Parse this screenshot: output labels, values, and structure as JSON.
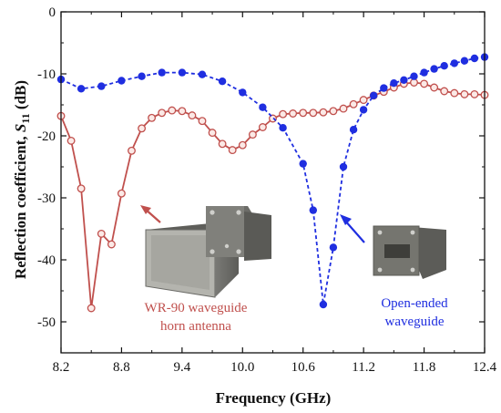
{
  "chart_data": {
    "type": "line",
    "xlabel": "Frequency (GHz)",
    "ylabel_main": "Reflection coefficient, ",
    "ylabel_sym": "S",
    "ylabel_sub": "11",
    "ylabel_unit": " (dB)",
    "xlim": [
      8.2,
      12.4
    ],
    "ylim": [
      -55,
      0
    ],
    "x_ticks": [
      "8.2",
      "8.8",
      "9.4",
      "10.0",
      "10.6",
      "11.2",
      "11.8",
      "12.4"
    ],
    "y_ticks": [
      "0",
      "-10",
      "-20",
      "-30",
      "-40",
      "-50"
    ],
    "grid": false,
    "series": [
      {
        "color": "#c0504d",
        "marker": "open-circle",
        "line": "solid",
        "label": [
          "WR-90 waveguide",
          "horn antenna"
        ],
        "x": [
          8.2,
          8.3,
          8.4,
          8.5,
          8.6,
          8.7,
          8.8,
          8.9,
          9.0,
          9.1,
          9.2,
          9.3,
          9.4,
          9.5,
          9.6,
          9.7,
          9.8,
          9.9,
          10.0,
          10.1,
          10.2,
          10.3,
          10.4,
          10.5,
          10.6,
          10.7,
          10.8,
          10.9,
          11.0,
          11.1,
          11.2,
          11.3,
          11.4,
          11.5,
          11.6,
          11.7,
          11.8,
          11.9,
          12.0,
          12.1,
          12.2,
          12.3,
          12.4
        ],
        "y": [
          -16.8,
          -20.8,
          -28.5,
          -47.8,
          -35.8,
          -37.5,
          -29.3,
          -22.4,
          -18.8,
          -17.1,
          -16.3,
          -15.9,
          -16.0,
          -16.7,
          -17.6,
          -19.5,
          -21.3,
          -22.3,
          -21.5,
          -19.8,
          -18.6,
          -17.2,
          -16.5,
          -16.4,
          -16.3,
          -16.3,
          -16.2,
          -16.0,
          -15.6,
          -14.9,
          -14.2,
          -13.5,
          -12.9,
          -12.2,
          -11.6,
          -11.4,
          -11.6,
          -12.2,
          -12.8,
          -13.1,
          -13.3,
          -13.3,
          -13.4
        ]
      },
      {
        "color": "#1f2ee0",
        "marker": "filled-circle",
        "line": "dashed",
        "label": [
          "Open-ended",
          "waveguide"
        ],
        "x": [
          8.2,
          8.4,
          8.6,
          8.8,
          9.0,
          9.2,
          9.4,
          9.6,
          9.8,
          10.0,
          10.2,
          10.4,
          10.6,
          10.7,
          10.8,
          10.9,
          11.0,
          11.1,
          11.2,
          11.3,
          11.4,
          11.5,
          11.6,
          11.7,
          11.8,
          11.9,
          12.0,
          12.1,
          12.2,
          12.3,
          12.4
        ],
        "y": [
          -10.9,
          -12.4,
          -12.0,
          -11.1,
          -10.4,
          -9.8,
          -9.8,
          -10.1,
          -11.2,
          -13.0,
          -15.4,
          -18.7,
          -24.5,
          -32.0,
          -47.2,
          -38.0,
          -25.0,
          -19.0,
          -15.8,
          -13.5,
          -12.3,
          -11.5,
          -11.0,
          -10.4,
          -9.8,
          -9.2,
          -8.7,
          -8.3,
          -7.9,
          -7.5,
          -7.3
        ]
      }
    ]
  }
}
